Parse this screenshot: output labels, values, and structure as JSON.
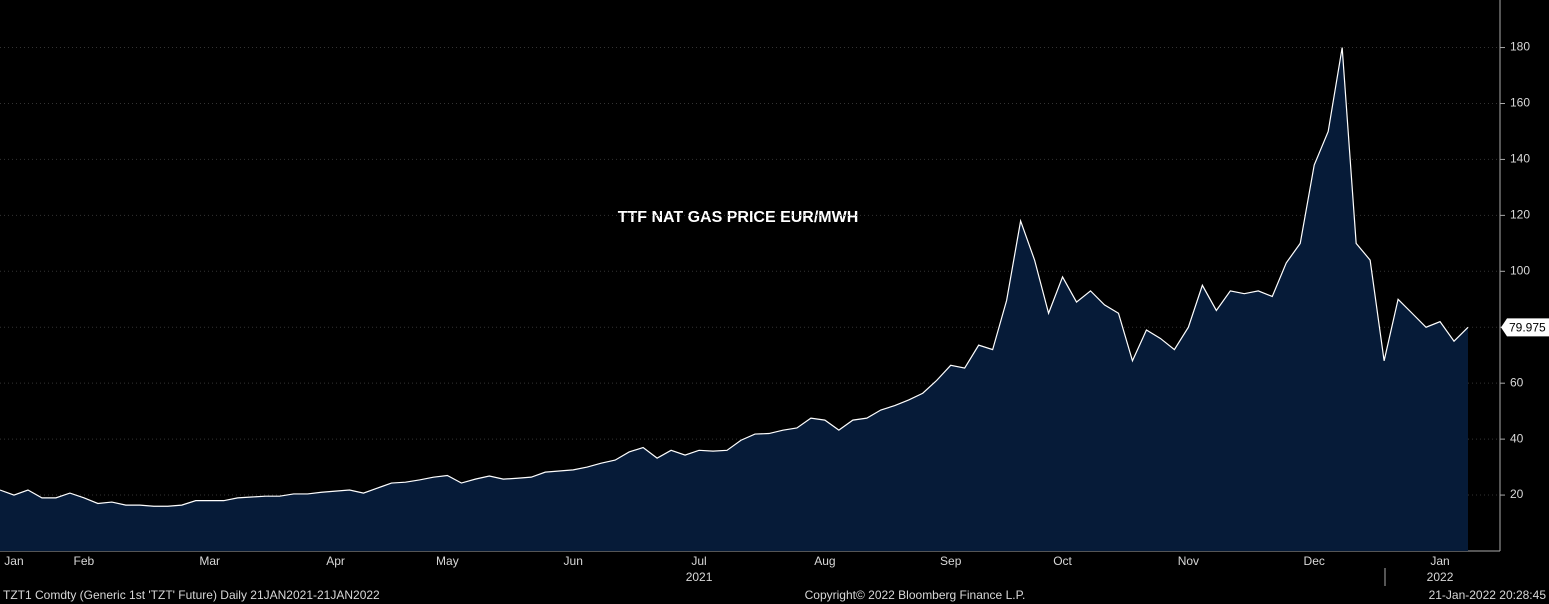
{
  "chart_data": {
    "type": "area",
    "title": "TTF NAT GAS PRICE EUR/MWH",
    "categories": [
      null,
      "Jan",
      null,
      null,
      null,
      null,
      "Feb",
      null,
      null,
      null,
      null,
      null,
      null,
      null,
      null,
      "Mar",
      null,
      null,
      null,
      null,
      null,
      null,
      null,
      null,
      "Apr",
      null,
      null,
      null,
      null,
      null,
      null,
      null,
      "May",
      null,
      null,
      null,
      null,
      null,
      null,
      null,
      null,
      "Jun",
      null,
      null,
      null,
      null,
      null,
      null,
      null,
      null,
      "Jul",
      null,
      null,
      null,
      null,
      null,
      null,
      null,
      null,
      "Aug",
      null,
      null,
      null,
      null,
      null,
      null,
      null,
      null,
      "Sep",
      null,
      null,
      null,
      null,
      null,
      null,
      null,
      "Oct",
      null,
      null,
      null,
      null,
      null,
      null,
      null,
      null,
      "Nov",
      null,
      null,
      null,
      null,
      null,
      null,
      null,
      null,
      "Dec",
      null,
      null,
      null,
      null,
      null,
      null,
      null,
      null,
      "Jan",
      null,
      null
    ],
    "year_categories": [
      null,
      null,
      null,
      null,
      null,
      null,
      null,
      null,
      null,
      null,
      null,
      null,
      null,
      null,
      null,
      null,
      null,
      null,
      null,
      null,
      null,
      null,
      null,
      null,
      null,
      null,
      null,
      null,
      null,
      null,
      null,
      null,
      null,
      null,
      null,
      null,
      null,
      null,
      null,
      null,
      null,
      null,
      null,
      null,
      null,
      null,
      null,
      null,
      null,
      null,
      "2021",
      null,
      null,
      null,
      null,
      null,
      null,
      null,
      null,
      null,
      null,
      null,
      null,
      null,
      null,
      null,
      null,
      null,
      null,
      null,
      null,
      null,
      null,
      null,
      null,
      null,
      null,
      null,
      null,
      null,
      null,
      null,
      null,
      null,
      null,
      null,
      null,
      null,
      null,
      null,
      null,
      null,
      null,
      null,
      null,
      null,
      null,
      null,
      null,
      null,
      null,
      null,
      null,
      "2022",
      null,
      null
    ],
    "series": [
      {
        "name": "TZT1 Comdty",
        "color": "#ffffff",
        "fill": "#061b38",
        "values": [
          21.8,
          20,
          21.8,
          19,
          19,
          20.7,
          19,
          17,
          17.5,
          16.4,
          16.4,
          16,
          16,
          16.4,
          18,
          18,
          18,
          19,
          19.3,
          19.6,
          19.6,
          20.4,
          20.4,
          21,
          21.4,
          21.8,
          20.7,
          22.5,
          24.3,
          24.6,
          25.4,
          26.4,
          27,
          24.3,
          25.7,
          26.8,
          25.7,
          26,
          26.4,
          28.2,
          28.6,
          29,
          30,
          31.4,
          32.5,
          35.4,
          37,
          33.2,
          36,
          34.3,
          36,
          35.7,
          36,
          39.6,
          41.8,
          42,
          43.2,
          44,
          47.5,
          46.8,
          43.2,
          46.8,
          47.5,
          50.4,
          52,
          54,
          56.4,
          61,
          66.4,
          65.4,
          73.6,
          72,
          89.6,
          118,
          104,
          85,
          98,
          89,
          93,
          88,
          85,
          68,
          79,
          76,
          72,
          80,
          95,
          86,
          93,
          92,
          93,
          91,
          103,
          110,
          138,
          150,
          180,
          110,
          104,
          68,
          90,
          85,
          80,
          82,
          75,
          79.975
        ]
      }
    ],
    "ylim": [
      0,
      197
    ],
    "yticks": [
      20,
      40,
      60,
      80,
      100,
      120,
      140,
      160,
      180
    ],
    "footer": {
      "left": "TZT1 Comdty (Generic 1st 'TZT' Future)  Daily 21JAN2021-21JAN2022",
      "center": "Copyright© 2022 Bloomberg Finance L.P.",
      "right": "21-Jan-2022 20:28:45"
    }
  }
}
